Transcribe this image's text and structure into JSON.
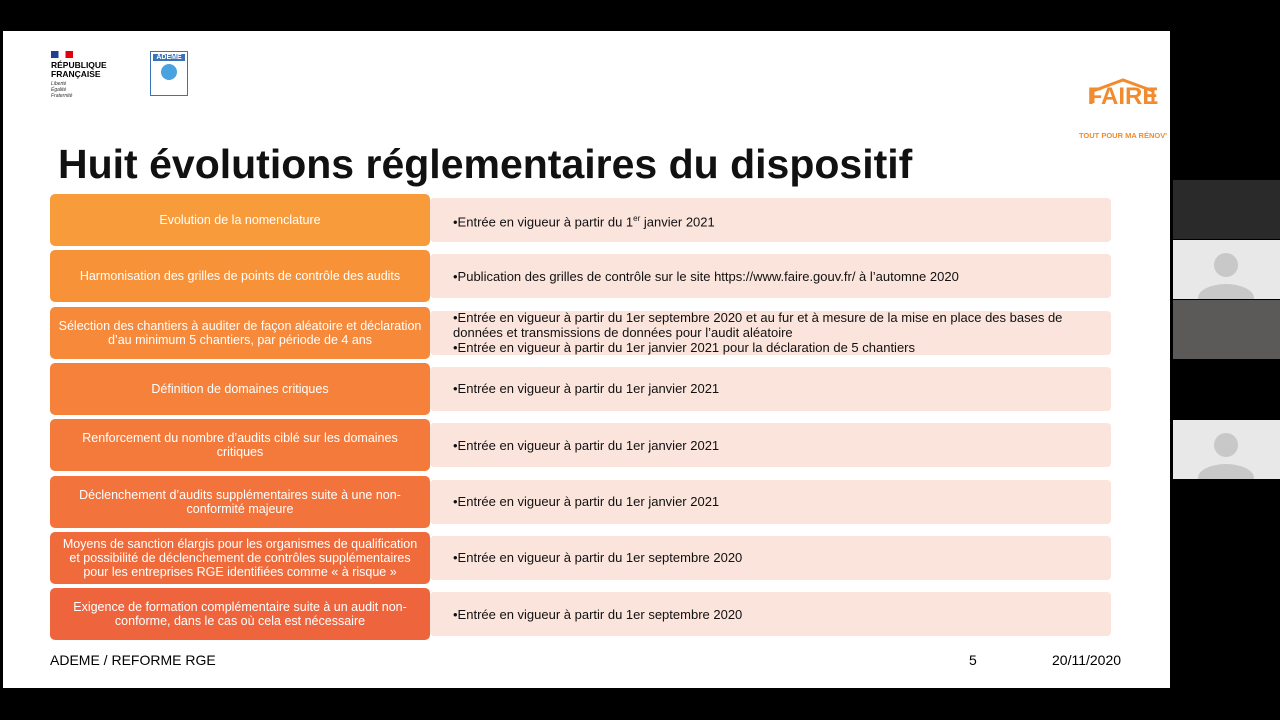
{
  "header": {
    "republic": "RÉPUBLIQUE\nFRANÇAISE",
    "motto": "Liberté\nÉgalité\nFraternité",
    "ademe": "ADEME",
    "faire": "FAIRE",
    "faire_tagline": "TOUT POUR MA RÉNOV'"
  },
  "slide": {
    "title": "Huit évolutions réglementaires du dispositif",
    "rows": [
      {
        "label": "Evolution de la nomenclature",
        "details": [
          [
            "•Entrée en vigueur à partir du 1",
            "er",
            " janvier 2021"
          ]
        ]
      },
      {
        "label": "Harmonisation des grilles de points de contrôle des audits",
        "details": [
          [
            "•Publication des grilles de contrôle sur le site https://www.faire.gouv.fr/ à l’automne 2020"
          ]
        ]
      },
      {
        "label": "Sélection des chantiers à auditer de façon aléatoire et déclaration d’au minimum 5 chantiers, par période de 4 ans",
        "details": [
          [
            "•Entrée en vigueur à partir du 1er septembre 2020 et au fur et à mesure de la mise en place des bases de données et transmissions de données pour l’audit aléatoire"
          ],
          [
            "•Entrée en vigueur à partir du 1er janvier 2021 pour la déclaration de 5 chantiers"
          ]
        ]
      },
      {
        "label": "Définition de domaines critiques",
        "details": [
          [
            "•Entrée en vigueur à partir du 1er janvier 2021"
          ]
        ]
      },
      {
        "label": "Renforcement du nombre d’audits ciblé sur les domaines critiques",
        "details": [
          [
            "•Entrée en vigueur à partir du 1er janvier 2021"
          ]
        ]
      },
      {
        "label": "Déclenchement d’audits supplémentaires suite à une non-conformité majeure",
        "details": [
          [
            "•Entrée en vigueur à partir du 1er janvier 2021"
          ]
        ]
      },
      {
        "label": "Moyens de sanction élargis pour les organismes de qualification et possibilité de déclenchement de contrôles supplémentaires pour les entreprises RGE identifiées comme « à risque »",
        "details": [
          [
            "•Entrée en vigueur à partir du 1er septembre 2020"
          ]
        ]
      },
      {
        "label": "Exigence de formation complémentaire suite à un audit non-conforme, dans le cas où cela est nécessaire",
        "details": [
          [
            "•Entrée en vigueur à partir du 1er septembre 2020"
          ]
        ]
      }
    ],
    "footer_left": "ADEME / REFORME RGE",
    "page_number": "5",
    "date": "20/11/2020"
  }
}
